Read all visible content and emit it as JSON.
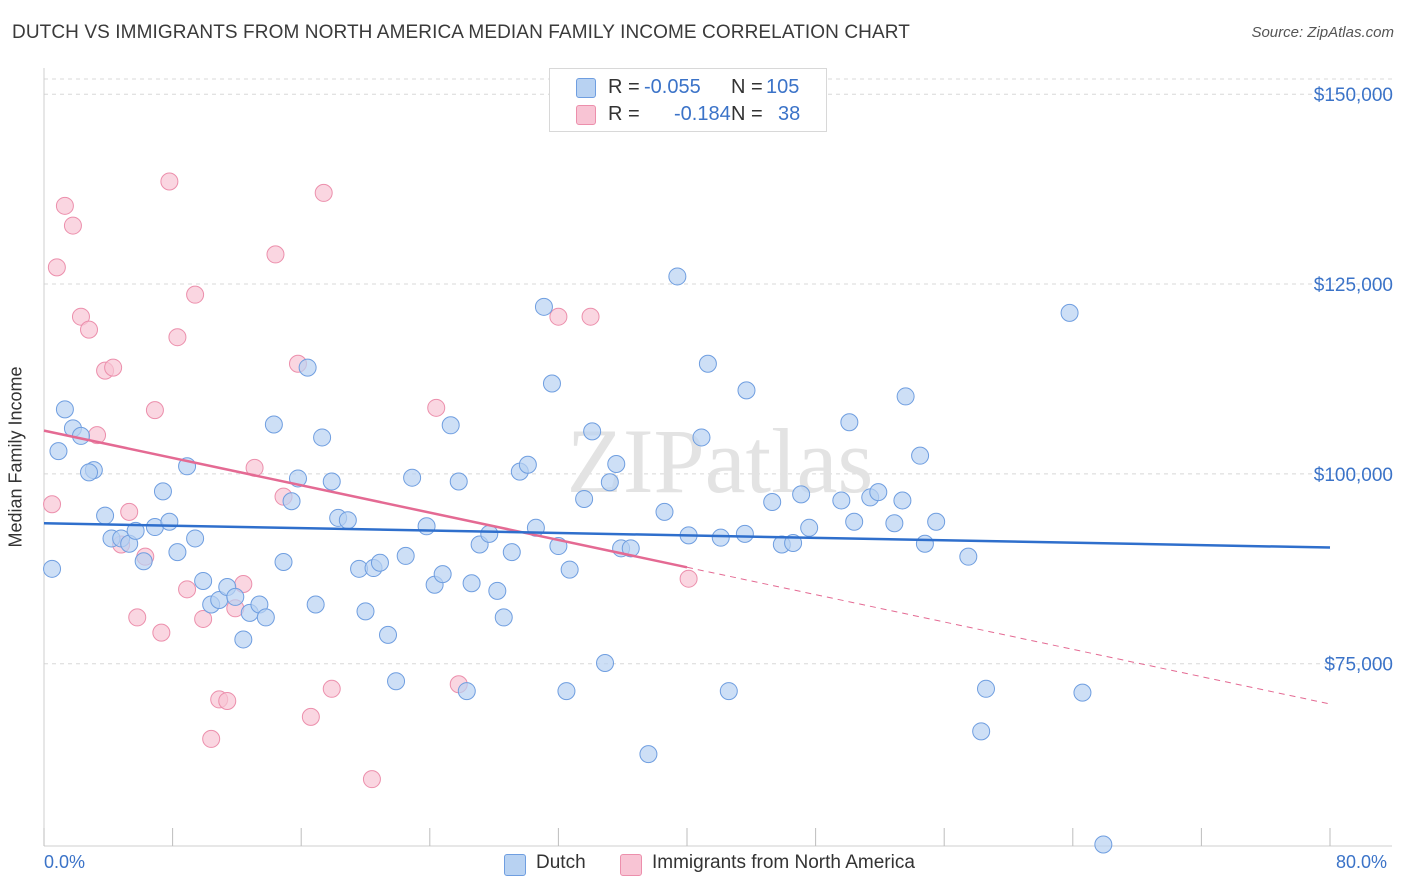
{
  "title": "DUTCH VS IMMIGRANTS FROM NORTH AMERICA MEDIAN FAMILY INCOME CORRELATION CHART",
  "source": "Source: ZipAtlas.com",
  "watermark": "ZIPatlas",
  "legend": {
    "r_key": "R =",
    "n_key": "N =",
    "rows": [
      {
        "series": "Dutch",
        "r": "-0.055",
        "n": "105"
      },
      {
        "series": "Immigrants from North America",
        "r": "-0.184",
        "n": "38"
      }
    ]
  },
  "bottom_legend": [
    "Dutch",
    "Immigrants from North America"
  ],
  "colors": {
    "dutch_fill": "#b8d2f2",
    "dutch_stroke": "#6f9ee0",
    "dutch_line": "#2f6fcc",
    "imm_fill": "#f8c4d4",
    "imm_stroke": "#ec8fac",
    "imm_line": "#e46a93",
    "tick_label": "#3b73c8",
    "grid": "#d8d8d8"
  },
  "chart_data": {
    "type": "scatter",
    "xlabel": "",
    "ylabel": "Median Family Income",
    "xlim": [
      0,
      80
    ],
    "ylim": [
      51000,
      152000
    ],
    "x_tick_labels": [
      "0.0%",
      "80.0%"
    ],
    "y_ticks": [
      75000,
      100000,
      125000,
      150000
    ],
    "y_tick_labels": [
      "$75,000",
      "$100,000",
      "$125,000",
      "$150,000"
    ],
    "grid": true,
    "legend_position": "top-center",
    "series": [
      {
        "name": "Dutch",
        "trend": {
          "x": [
            0,
            80
          ],
          "y": [
            93500,
            90300
          ]
        },
        "points": [
          [
            0.5,
            87500
          ],
          [
            1.3,
            108500
          ],
          [
            0.9,
            103000
          ],
          [
            1.8,
            106000
          ],
          [
            2.3,
            105000
          ],
          [
            3.1,
            100500
          ],
          [
            2.8,
            100200
          ],
          [
            3.8,
            94500
          ],
          [
            4.2,
            91500
          ],
          [
            4.8,
            91500
          ],
          [
            5.3,
            90800
          ],
          [
            5.7,
            92500
          ],
          [
            6.2,
            88500
          ],
          [
            6.9,
            93000
          ],
          [
            7.4,
            97700
          ],
          [
            7.8,
            93700
          ],
          [
            8.3,
            89700
          ],
          [
            8.9,
            101000
          ],
          [
            9.4,
            91500
          ],
          [
            9.9,
            85900
          ],
          [
            10.4,
            82800
          ],
          [
            10.9,
            83400
          ],
          [
            11.4,
            85100
          ],
          [
            11.9,
            83800
          ],
          [
            12.4,
            78200
          ],
          [
            12.8,
            81700
          ],
          [
            13.4,
            82800
          ],
          [
            13.8,
            81100
          ],
          [
            14.3,
            106500
          ],
          [
            14.9,
            88400
          ],
          [
            15.4,
            96400
          ],
          [
            15.8,
            99400
          ],
          [
            16.4,
            114000
          ],
          [
            16.9,
            82800
          ],
          [
            17.3,
            104800
          ],
          [
            17.9,
            99000
          ],
          [
            18.3,
            94200
          ],
          [
            18.9,
            93900
          ],
          [
            19.6,
            87500
          ],
          [
            20.0,
            81900
          ],
          [
            20.5,
            87600
          ],
          [
            20.9,
            88300
          ],
          [
            21.4,
            78800
          ],
          [
            21.9,
            72700
          ],
          [
            22.5,
            89200
          ],
          [
            22.9,
            99500
          ],
          [
            23.8,
            93100
          ],
          [
            24.3,
            85400
          ],
          [
            24.8,
            86800
          ],
          [
            25.3,
            106400
          ],
          [
            25.8,
            99000
          ],
          [
            26.3,
            71400
          ],
          [
            26.6,
            85600
          ],
          [
            27.1,
            90700
          ],
          [
            27.7,
            92100
          ],
          [
            28.2,
            84600
          ],
          [
            28.6,
            81100
          ],
          [
            29.1,
            89700
          ],
          [
            29.6,
            100300
          ],
          [
            30.1,
            101200
          ],
          [
            30.6,
            92900
          ],
          [
            31.1,
            122000
          ],
          [
            31.6,
            111900
          ],
          [
            32.0,
            90500
          ],
          [
            32.5,
            71400
          ],
          [
            32.7,
            87400
          ],
          [
            33.6,
            96700
          ],
          [
            34.1,
            105600
          ],
          [
            34.9,
            75100
          ],
          [
            35.2,
            98900
          ],
          [
            35.6,
            101300
          ],
          [
            35.9,
            90200
          ],
          [
            36.5,
            90200
          ],
          [
            37.6,
            63100
          ],
          [
            38.6,
            95000
          ],
          [
            39.4,
            126000
          ],
          [
            40.1,
            91900
          ],
          [
            40.9,
            104800
          ],
          [
            41.3,
            114500
          ],
          [
            42.1,
            91600
          ],
          [
            42.6,
            71400
          ],
          [
            43.7,
            111000
          ],
          [
            43.6,
            92100
          ],
          [
            45.3,
            96300
          ],
          [
            45.9,
            90700
          ],
          [
            46.6,
            90900
          ],
          [
            47.1,
            97300
          ],
          [
            47.6,
            92900
          ],
          [
            49.6,
            96500
          ],
          [
            50.1,
            106800
          ],
          [
            50.4,
            93700
          ],
          [
            51.4,
            96900
          ],
          [
            51.9,
            97600
          ],
          [
            52.9,
            93500
          ],
          [
            53.4,
            96500
          ],
          [
            53.6,
            110200
          ],
          [
            54.5,
            102400
          ],
          [
            54.8,
            90800
          ],
          [
            55.5,
            93700
          ],
          [
            57.5,
            89100
          ],
          [
            58.3,
            66100
          ],
          [
            58.6,
            71700
          ],
          [
            63.8,
            121200
          ],
          [
            64.6,
            71200
          ],
          [
            65.9,
            51200
          ]
        ]
      },
      {
        "name": "Immigrants from North America",
        "trend": {
          "x": [
            0,
            40
          ],
          "y": [
            105700,
            87700
          ]
        },
        "trend_extension": {
          "x": [
            40,
            80
          ],
          "y": [
            87700,
            69700
          ]
        },
        "points": [
          [
            0.5,
            96000
          ],
          [
            0.8,
            127200
          ],
          [
            1.3,
            135300
          ],
          [
            1.8,
            132700
          ],
          [
            2.3,
            120700
          ],
          [
            2.8,
            119000
          ],
          [
            3.3,
            105100
          ],
          [
            3.8,
            113600
          ],
          [
            4.3,
            114000
          ],
          [
            4.8,
            90700
          ],
          [
            5.3,
            95000
          ],
          [
            5.8,
            81100
          ],
          [
            6.3,
            89100
          ],
          [
            6.9,
            108400
          ],
          [
            7.3,
            79100
          ],
          [
            7.8,
            138500
          ],
          [
            8.3,
            118000
          ],
          [
            8.9,
            84800
          ],
          [
            9.4,
            123600
          ],
          [
            9.9,
            80900
          ],
          [
            10.4,
            65100
          ],
          [
            10.9,
            70300
          ],
          [
            11.4,
            70100
          ],
          [
            11.9,
            82300
          ],
          [
            12.4,
            85500
          ],
          [
            13.1,
            100800
          ],
          [
            14.4,
            128900
          ],
          [
            14.9,
            97000
          ],
          [
            15.8,
            114500
          ],
          [
            16.6,
            68000
          ],
          [
            17.4,
            137000
          ],
          [
            17.9,
            71700
          ],
          [
            20.4,
            59800
          ],
          [
            24.4,
            108700
          ],
          [
            25.8,
            72300
          ],
          [
            32.0,
            120700
          ],
          [
            34.0,
            120700
          ],
          [
            40.1,
            86200
          ]
        ]
      }
    ]
  }
}
